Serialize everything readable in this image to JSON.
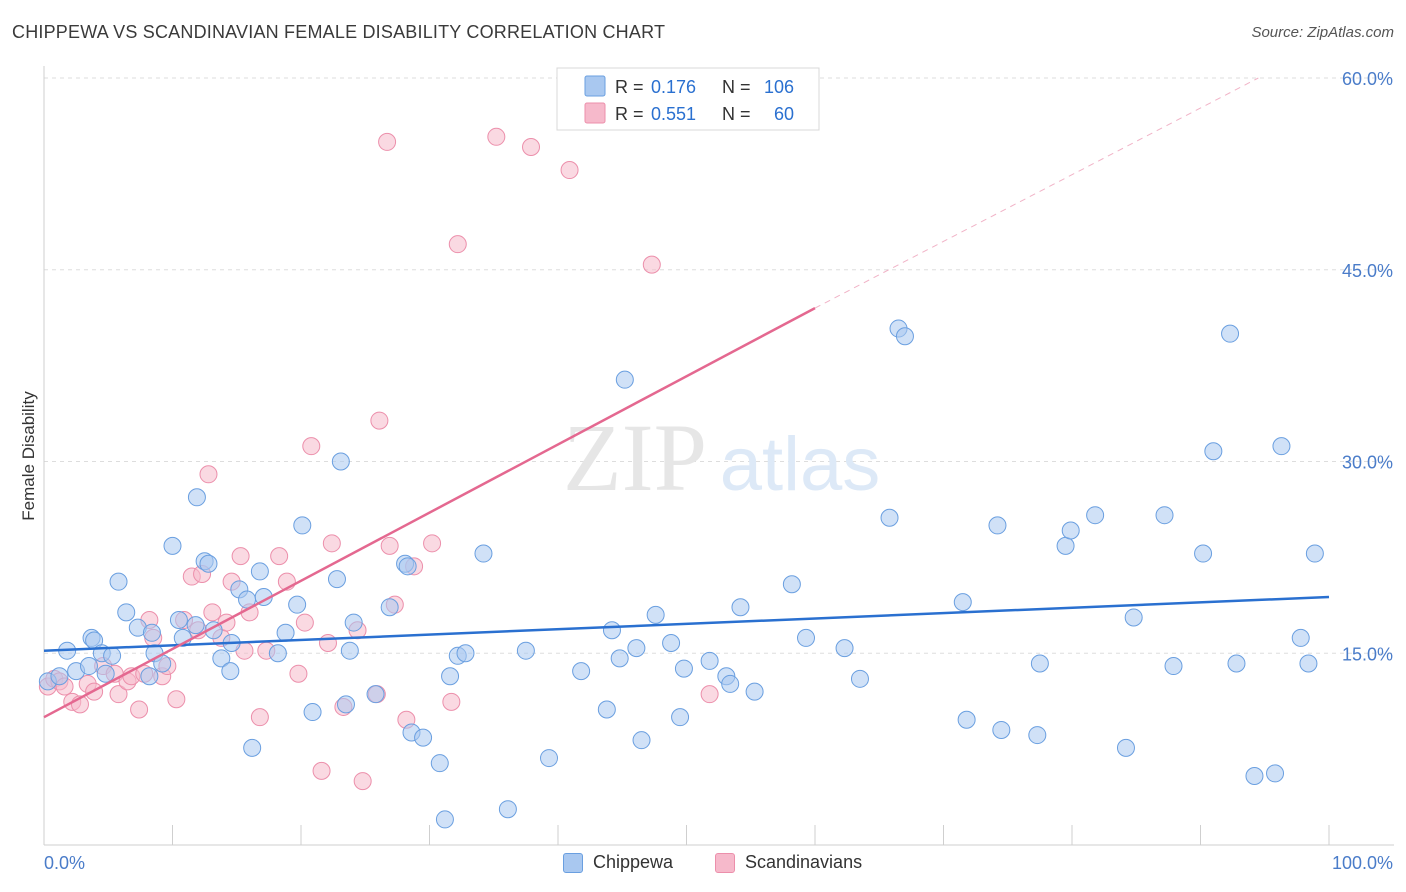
{
  "title": "CHIPPEWA VS SCANDINAVIAN FEMALE DISABILITY CORRELATION CHART",
  "source": "Source: ZipAtlas.com",
  "watermark": {
    "zip": "ZIP",
    "atlas": "atlas"
  },
  "colors": {
    "chippewa_fill": "#a9c8f0",
    "chippewa_stroke": "#6a9fe0",
    "chippewa_line": "#2a70d0",
    "scandinavian_fill": "#f6b9cb",
    "scandinavian_stroke": "#ec8fab",
    "scandinavian_line": "#e46890",
    "axis_text": "#4a7cc9",
    "grid": "#dddddd"
  },
  "legend_top": [
    {
      "r_label": "R =",
      "r_value": "0.176",
      "n_label": "N =",
      "n_value": "106"
    },
    {
      "r_label": "R =",
      "r_value": "0.551",
      "n_label": "N =",
      "n_value": "60"
    }
  ],
  "legend_bottom": [
    "Chippewa",
    "Scandinavians"
  ],
  "chart_data": {
    "type": "scatter",
    "title": "CHIPPEWA VS SCANDINAVIAN FEMALE DISABILITY CORRELATION CHART",
    "xlabel": "",
    "ylabel": "Female Disability",
    "xlim": [
      0,
      100
    ],
    "ylim": [
      0,
      60
    ],
    "x_tick_labels": [
      {
        "value": 0,
        "label": "0.0%"
      },
      {
        "value": 100,
        "label": "100.0%"
      }
    ],
    "y_tick_labels": [
      {
        "value": 15,
        "label": "15.0%"
      },
      {
        "value": 30,
        "label": "30.0%"
      },
      {
        "value": 45,
        "label": "45.0%"
      },
      {
        "value": 60,
        "label": "60.0%"
      }
    ],
    "grid": true,
    "series": [
      {
        "name": "Chippewa",
        "r": 0.176,
        "n": 106,
        "trend": {
          "x": [
            0,
            100
          ],
          "y": [
            15.2,
            19.4
          ]
        },
        "points": [
          [
            0.3,
            12.8
          ],
          [
            1.2,
            13.2
          ],
          [
            1.8,
            15.2
          ],
          [
            2.5,
            13.6
          ],
          [
            3.5,
            14.0
          ],
          [
            3.7,
            16.2
          ],
          [
            3.9,
            16.0
          ],
          [
            4.5,
            15.0
          ],
          [
            4.8,
            13.4
          ],
          [
            5.3,
            14.8
          ],
          [
            5.8,
            20.6
          ],
          [
            6.4,
            18.2
          ],
          [
            7.3,
            17.0
          ],
          [
            8.4,
            16.6
          ],
          [
            8.6,
            15.0
          ],
          [
            8.2,
            13.2
          ],
          [
            9.2,
            14.2
          ],
          [
            10.0,
            23.4
          ],
          [
            10.5,
            17.6
          ],
          [
            10.8,
            16.2
          ],
          [
            11.8,
            17.2
          ],
          [
            11.9,
            27.2
          ],
          [
            12.5,
            22.2
          ],
          [
            12.8,
            22.0
          ],
          [
            13.2,
            16.8
          ],
          [
            13.8,
            14.6
          ],
          [
            14.5,
            13.6
          ],
          [
            14.6,
            15.8
          ],
          [
            15.2,
            20.0
          ],
          [
            15.8,
            19.2
          ],
          [
            16.2,
            7.6
          ],
          [
            16.8,
            21.4
          ],
          [
            17.1,
            19.4
          ],
          [
            18.2,
            15.0
          ],
          [
            18.8,
            16.6
          ],
          [
            19.7,
            18.8
          ],
          [
            20.1,
            25.0
          ],
          [
            20.9,
            10.4
          ],
          [
            22.8,
            20.8
          ],
          [
            23.1,
            30.0
          ],
          [
            23.5,
            11.0
          ],
          [
            23.8,
            15.2
          ],
          [
            24.1,
            17.4
          ],
          [
            25.8,
            11.8
          ],
          [
            26.9,
            18.6
          ],
          [
            28.1,
            22.0
          ],
          [
            28.3,
            21.8
          ],
          [
            28.6,
            8.8
          ],
          [
            29.5,
            8.4
          ],
          [
            30.8,
            6.4
          ],
          [
            31.2,
            2.0
          ],
          [
            31.6,
            13.2
          ],
          [
            32.2,
            14.8
          ],
          [
            32.8,
            15.0
          ],
          [
            34.2,
            22.8
          ],
          [
            36.1,
            2.8
          ],
          [
            37.5,
            15.2
          ],
          [
            39.3,
            6.8
          ],
          [
            41.8,
            13.6
          ],
          [
            43.8,
            10.6
          ],
          [
            44.2,
            16.8
          ],
          [
            44.8,
            14.6
          ],
          [
            45.2,
            36.4
          ],
          [
            46.1,
            15.4
          ],
          [
            46.5,
            8.2
          ],
          [
            47.6,
            18.0
          ],
          [
            48.8,
            15.8
          ],
          [
            49.5,
            10.0
          ],
          [
            49.8,
            13.8
          ],
          [
            51.8,
            14.4
          ],
          [
            53.1,
            13.2
          ],
          [
            53.4,
            12.6
          ],
          [
            54.2,
            18.6
          ],
          [
            55.3,
            12.0
          ],
          [
            58.2,
            20.4
          ],
          [
            59.3,
            16.2
          ],
          [
            62.3,
            15.4
          ],
          [
            63.5,
            13.0
          ],
          [
            65.8,
            25.6
          ],
          [
            66.5,
            40.4
          ],
          [
            67.0,
            39.8
          ],
          [
            71.5,
            19.0
          ],
          [
            71.8,
            9.8
          ],
          [
            74.2,
            25.0
          ],
          [
            74.5,
            9.0
          ],
          [
            77.3,
            8.6
          ],
          [
            77.5,
            14.2
          ],
          [
            79.5,
            23.4
          ],
          [
            79.9,
            24.6
          ],
          [
            81.8,
            25.8
          ],
          [
            84.2,
            7.6
          ],
          [
            84.8,
            17.8
          ],
          [
            87.2,
            25.8
          ],
          [
            87.9,
            14.0
          ],
          [
            90.2,
            22.8
          ],
          [
            91.0,
            30.8
          ],
          [
            92.3,
            40.0
          ],
          [
            92.8,
            14.2
          ],
          [
            94.2,
            5.4
          ],
          [
            95.8,
            5.6
          ],
          [
            96.3,
            31.2
          ],
          [
            97.8,
            16.2
          ],
          [
            98.4,
            14.2
          ],
          [
            98.9,
            22.8
          ]
        ]
      },
      {
        "name": "Scandinavians",
        "r": 0.551,
        "n": 60,
        "trend": {
          "x": [
            0,
            60
          ],
          "y": [
            10.0,
            42.0
          ]
        },
        "trend_dashed": {
          "x": [
            60,
            94.5
          ],
          "y": [
            42.0,
            60.0
          ]
        },
        "points": [
          [
            0.3,
            12.4
          ],
          [
            0.8,
            13.0
          ],
          [
            1.2,
            12.8
          ],
          [
            1.6,
            12.4
          ],
          [
            2.2,
            11.2
          ],
          [
            2.8,
            11.0
          ],
          [
            3.4,
            12.6
          ],
          [
            3.9,
            12.0
          ],
          [
            4.6,
            14.0
          ],
          [
            5.5,
            13.4
          ],
          [
            5.8,
            11.8
          ],
          [
            6.5,
            12.8
          ],
          [
            6.8,
            13.2
          ],
          [
            7.4,
            10.6
          ],
          [
            7.8,
            13.4
          ],
          [
            8.2,
            17.6
          ],
          [
            8.5,
            16.2
          ],
          [
            9.2,
            13.2
          ],
          [
            9.6,
            14.0
          ],
          [
            10.3,
            11.4
          ],
          [
            10.9,
            17.6
          ],
          [
            11.5,
            21.0
          ],
          [
            12.0,
            16.8
          ],
          [
            12.3,
            21.2
          ],
          [
            12.8,
            29.0
          ],
          [
            13.1,
            18.2
          ],
          [
            13.8,
            16.2
          ],
          [
            14.2,
            17.4
          ],
          [
            14.6,
            20.6
          ],
          [
            15.3,
            22.6
          ],
          [
            15.6,
            15.2
          ],
          [
            16.0,
            18.2
          ],
          [
            16.8,
            10.0
          ],
          [
            17.3,
            15.2
          ],
          [
            18.3,
            22.6
          ],
          [
            18.9,
            20.6
          ],
          [
            19.8,
            13.4
          ],
          [
            20.3,
            17.4
          ],
          [
            20.8,
            31.2
          ],
          [
            21.6,
            5.8
          ],
          [
            22.1,
            15.8
          ],
          [
            22.4,
            23.6
          ],
          [
            23.3,
            10.8
          ],
          [
            24.4,
            16.8
          ],
          [
            24.8,
            5.0
          ],
          [
            25.9,
            11.8
          ],
          [
            26.1,
            33.2
          ],
          [
            26.9,
            23.4
          ],
          [
            27.3,
            18.8
          ],
          [
            28.2,
            9.8
          ],
          [
            28.8,
            21.8
          ],
          [
            30.2,
            23.6
          ],
          [
            31.7,
            11.2
          ],
          [
            32.2,
            47.0
          ],
          [
            35.2,
            55.4
          ],
          [
            37.9,
            54.6
          ],
          [
            40.9,
            52.8
          ],
          [
            47.3,
            45.4
          ],
          [
            51.8,
            11.8
          ],
          [
            26.7,
            55.0
          ]
        ]
      }
    ]
  }
}
